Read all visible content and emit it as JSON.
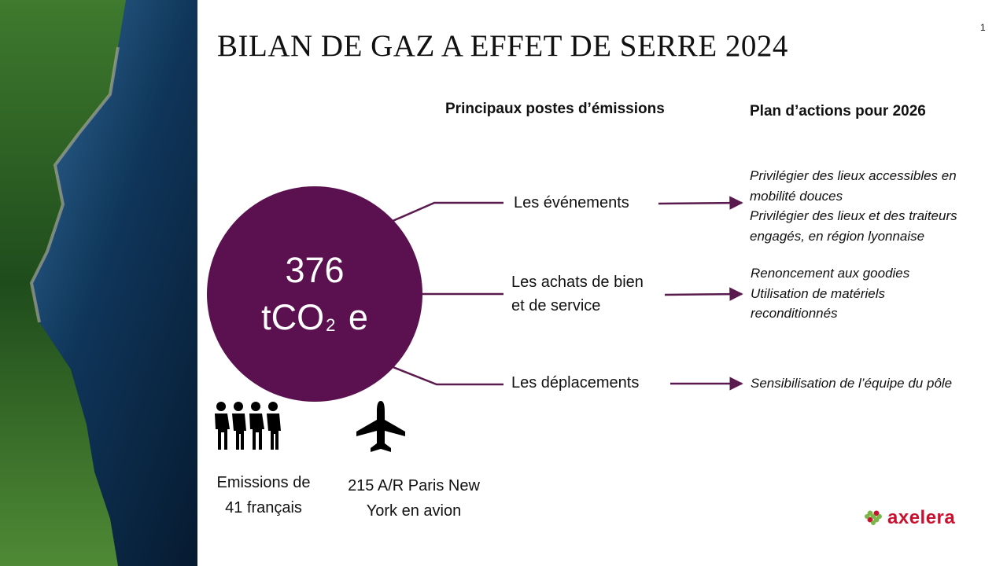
{
  "page_number": "1",
  "title": "BILAN DE GAZ A EFFET DE SERRE 2024",
  "headers": {
    "emissions": "Principaux postes d’émissions",
    "actions": "Plan d’actions pour 2026"
  },
  "total": {
    "value": "376",
    "unit": "tCO",
    "unit_subscript": "2",
    "unit_suffix": "e"
  },
  "emission_items": [
    {
      "label": "Les événements",
      "actions": [
        "Privilégier des lieux accessibles en mobilité douces",
        "Privilégier des lieux et des traiteurs engagés, en région lyonnaise"
      ]
    },
    {
      "label": "Les achats de bien et de service",
      "actions": [
        "Renoncement aux goodies",
        "Utilisation de matériels reconditionnés"
      ]
    },
    {
      "label": "Les déplacements",
      "actions": [
        "Sensibilisation de l’équipe du pôle"
      ]
    }
  ],
  "equivalents": [
    "Emissions de 41 français",
    "215 A/R Paris New York en avion"
  ],
  "logo": "axelera"
}
